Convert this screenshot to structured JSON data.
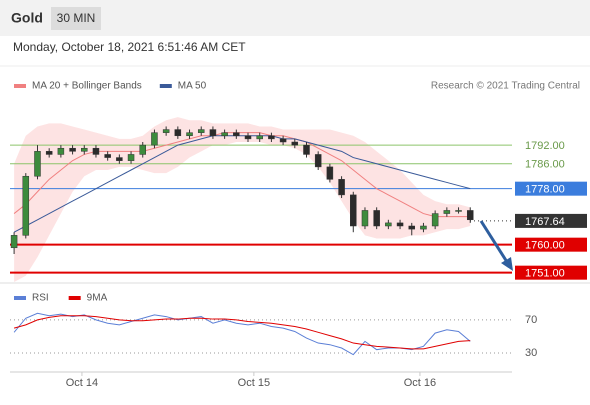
{
  "header": {
    "title": "Gold",
    "timeframe": "30 MIN",
    "datetime": "Monday, October 18, 2021 6:51:46 AM CET"
  },
  "chart_data": [
    {
      "type": "candlestick",
      "credit": "Research © 2021 Trading Central",
      "xlim": [
        -0.35,
        42.4
      ],
      "ylim": [
        1748,
        1806.5
      ],
      "up_color": "#3d8b3d",
      "down_color": "#2b2b2b",
      "open": [
        1759,
        1763,
        1782,
        1790,
        1789,
        1791,
        1790,
        1791,
        1789,
        1788,
        1787,
        1789,
        1792,
        1796,
        1797,
        1795,
        1796,
        1797,
        1795,
        1796,
        1795,
        1794,
        1795,
        1794,
        1793,
        1792,
        1789,
        1785,
        1781,
        1776,
        1766,
        1771,
        1766,
        1767,
        1766,
        1765,
        1766,
        1770,
        1771,
        1771
      ],
      "high": [
        1764,
        1783,
        1792,
        1791,
        1792,
        1792,
        1792,
        1792,
        1790,
        1789,
        1790,
        1793,
        1797,
        1798,
        1798,
        1797,
        1798,
        1798,
        1797,
        1797,
        1796,
        1796,
        1796,
        1795,
        1794,
        1793,
        1790,
        1786,
        1782,
        1777,
        1772,
        1772,
        1768,
        1768,
        1767,
        1767,
        1771,
        1772,
        1772,
        1772
      ],
      "low": [
        1757,
        1762,
        1781,
        1788,
        1788,
        1789,
        1789,
        1788,
        1787,
        1786,
        1786,
        1788,
        1791,
        1795,
        1794,
        1794,
        1795,
        1794,
        1794,
        1794,
        1793,
        1793,
        1793,
        1792,
        1791,
        1788,
        1784,
        1780,
        1775,
        1764,
        1765,
        1765,
        1765,
        1765,
        1763,
        1764,
        1765,
        1769,
        1770,
        1767
      ],
      "close": [
        1763,
        1782,
        1790,
        1789,
        1791,
        1790,
        1791,
        1789,
        1788,
        1787,
        1789,
        1792,
        1796,
        1797,
        1795,
        1796,
        1797,
        1795,
        1796,
        1795,
        1794,
        1795,
        1794,
        1793,
        1792,
        1789,
        1785,
        1781,
        1776,
        1766,
        1771,
        1766,
        1767,
        1766,
        1765,
        1766,
        1770,
        1771,
        1771,
        1768
      ],
      "series": [
        {
          "name": "MA 20 + Bollinger Bands",
          "color": "#f08080",
          "band_color": "#fde3e3",
          "values": [
            1770,
            1773,
            1777,
            1781,
            1784,
            1787,
            1789,
            1790,
            1790,
            1790,
            1790,
            1790,
            1791,
            1792,
            1793,
            1794,
            1795,
            1795,
            1796,
            1796,
            1796,
            1796,
            1795,
            1795,
            1794,
            1793,
            1791,
            1789,
            1787,
            1784,
            1781,
            1778,
            1776,
            1774,
            1772,
            1770,
            1769,
            1769,
            1769,
            1769
          ],
          "upper": [
            1786,
            1795,
            1798,
            1799,
            1799,
            1798,
            1797,
            1796,
            1795,
            1794,
            1794,
            1795,
            1798,
            1800,
            1801,
            1800,
            1800,
            1799,
            1799,
            1799,
            1799,
            1798,
            1798,
            1797,
            1797,
            1797,
            1797,
            1797,
            1796,
            1795,
            1793,
            1790,
            1787,
            1784,
            1780,
            1776,
            1774,
            1773,
            1773,
            1772
          ],
          "lower": [
            1748,
            1750,
            1756,
            1763,
            1770,
            1777,
            1782,
            1784,
            1784,
            1785,
            1785,
            1784,
            1783,
            1783,
            1785,
            1788,
            1790,
            1792,
            1792,
            1793,
            1793,
            1793,
            1792,
            1792,
            1791,
            1789,
            1785,
            1780,
            1774,
            1768,
            1763,
            1762,
            1762,
            1762,
            1763,
            1763,
            1764,
            1765,
            1765,
            1766
          ]
        },
        {
          "name": "MA 50",
          "color": "#3a5a99",
          "values": [
            1764,
            1766,
            1768,
            1770,
            1772,
            1774,
            1776,
            1778,
            1780,
            1782,
            1784,
            1786,
            1788,
            1790,
            1792,
            1793,
            1794,
            1795,
            1795,
            1795,
            1795,
            1795,
            1795,
            1794,
            1794,
            1793,
            1792,
            1791,
            1790,
            1788,
            1787,
            1786,
            1785,
            1784,
            1783,
            1782,
            1781,
            1780,
            1779,
            1778
          ]
        }
      ],
      "levels": [
        {
          "value": 1792,
          "label": "1792.00",
          "color": "#8cc46a",
          "boxed": false
        },
        {
          "value": 1786,
          "label": "1786.00",
          "color": "#8cc46a",
          "boxed": false
        },
        {
          "value": 1778,
          "label": "1778.00",
          "color": "#3b7ddd",
          "boxed": true
        },
        {
          "value": 1767.64,
          "label": "1767.64",
          "color": "#333333",
          "boxed": true,
          "dotted": true
        },
        {
          "value": 1760,
          "label": "1760.00",
          "color": "#e00000",
          "boxed": true
        },
        {
          "value": 1751,
          "label": "1751.00",
          "color": "#e00000",
          "boxed": true
        }
      ]
    },
    {
      "type": "line",
      "xlim": [
        -0.35,
        42.4
      ],
      "ylim": [
        7,
        88
      ],
      "yticks": [
        70,
        30
      ],
      "xticks": [
        {
          "value": 5.8,
          "label": "Oct 14"
        },
        {
          "value": 20.5,
          "label": "Oct 15"
        },
        {
          "value": 34.7,
          "label": "Oct 16"
        }
      ],
      "series": [
        {
          "name": "RSI",
          "color": "#5b7fd6",
          "values": [
            55,
            72,
            78,
            75,
            77,
            74,
            76,
            70,
            66,
            64,
            68,
            72,
            76,
            74,
            70,
            72,
            74,
            66,
            70,
            66,
            64,
            66,
            62,
            60,
            56,
            48,
            42,
            40,
            36,
            28,
            44,
            34,
            36,
            36,
            34,
            38,
            54,
            58,
            56,
            44
          ]
        },
        {
          "name": "9MA",
          "color": "#e00000",
          "values": [
            60,
            64,
            70,
            73,
            75,
            75,
            75,
            74,
            72,
            70,
            69,
            69,
            70,
            71,
            71,
            72,
            72,
            71,
            71,
            70,
            68,
            67,
            66,
            64,
            62,
            59,
            55,
            51,
            47,
            42,
            40,
            38,
            37,
            36,
            35,
            35,
            38,
            41,
            44,
            45
          ]
        }
      ]
    }
  ]
}
